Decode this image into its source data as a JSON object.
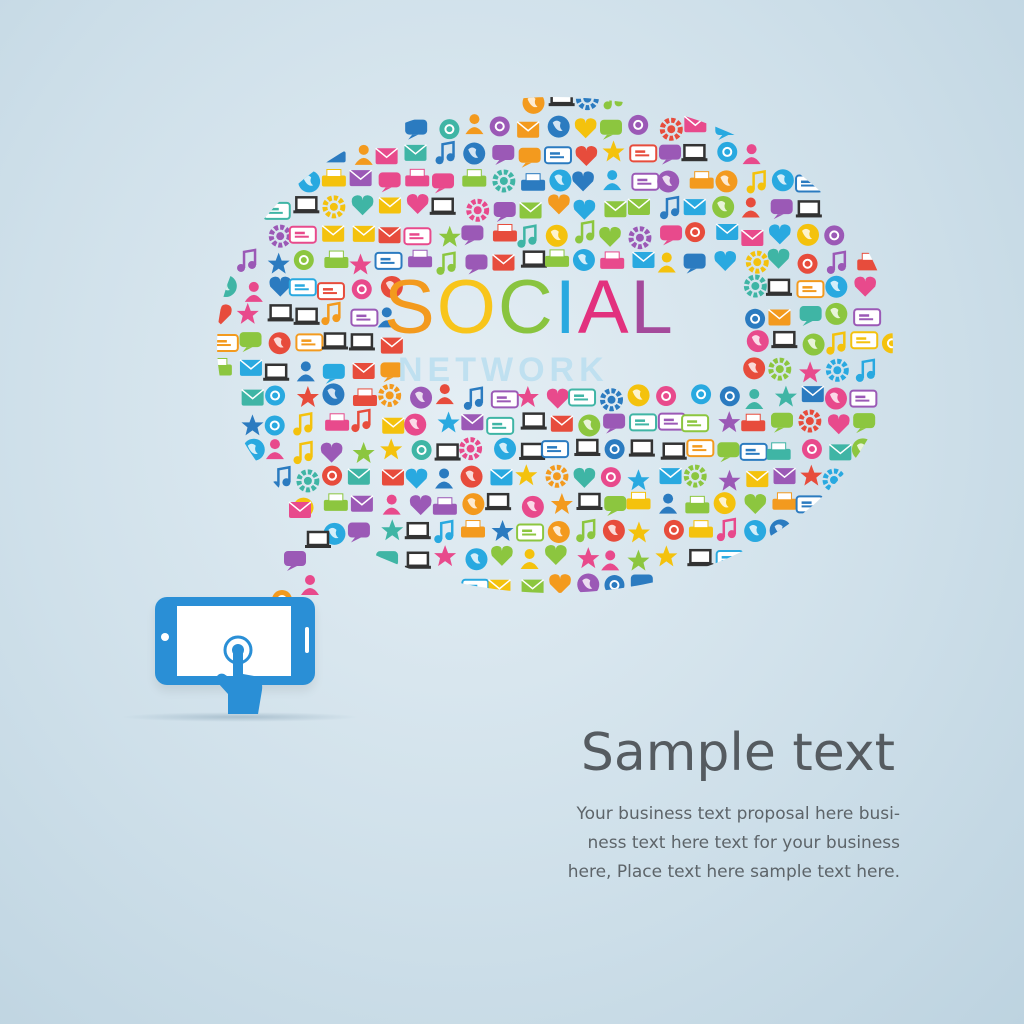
{
  "headline": {
    "word1_letters": [
      {
        "ch": "S",
        "color": "#f39a1e"
      },
      {
        "ch": "O",
        "color": "#f8c51b"
      },
      {
        "ch": "C",
        "color": "#89c43f"
      },
      {
        "ch": "I",
        "color": "#29a9e0"
      },
      {
        "ch": "A",
        "color": "#e2317e"
      },
      {
        "ch": "L",
        "color": "#a44a9b"
      }
    ],
    "word2": "NETWORK"
  },
  "sample": {
    "title": "Sample text",
    "body_lines": [
      "Your business text proposal here busi-",
      "ness text here text for your business",
      "here, Place text here sample text here."
    ]
  },
  "icon_palette": [
    "#e84a8c",
    "#29a9e0",
    "#8cc63f",
    "#f39a1e",
    "#f4c20d",
    "#3fb5a5",
    "#9b59b6",
    "#e74c3c",
    "#2b7bc0"
  ],
  "icon_names": [
    "envelope-icon",
    "globe-icon",
    "gear-icon",
    "user-icon",
    "printer-icon",
    "laptop-icon",
    "music-note-icon",
    "heart-icon",
    "at-sign-icon",
    "seo-tag-icon",
    "chat-bubble-icon",
    "star-icon"
  ]
}
